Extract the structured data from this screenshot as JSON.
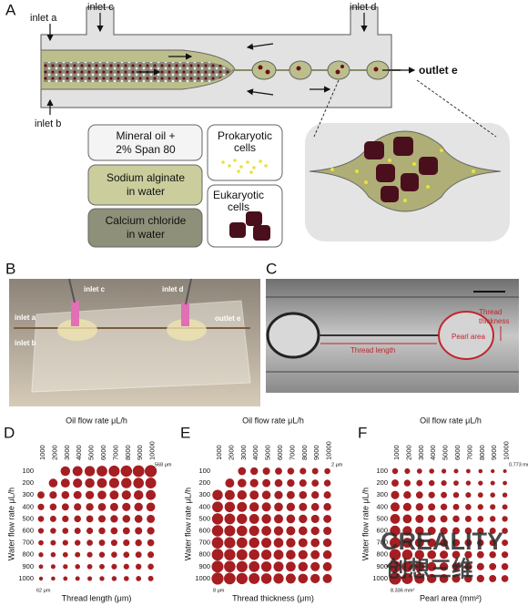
{
  "panel_a": {
    "label": "A",
    "inlet_a": "inlet a",
    "inlet_b": "inlet b",
    "inlet_c": "inlet c",
    "inlet_d": "inlet d",
    "outlet_e": "outlet e",
    "oil_line1": "Mineral oil +",
    "oil_line2": "2% Span 80",
    "prokaryotic_line1": "Prokaryotic",
    "prokaryotic_line2": "cells",
    "alginate_line1": "Sodium alginate",
    "alginate_line2": "in water",
    "calcium_line1": "Calcium chloride",
    "calcium_line2": "in water",
    "eukaryotic_line1": "Eukaryotic",
    "eukaryotic_line2": "cells"
  },
  "panel_b": {
    "label": "B",
    "inlet_c": "inlet c",
    "inlet_d": "inlet d",
    "inlet_a": "inlet a",
    "inlet_b": "inlet b",
    "outlet_e": "outlet e"
  },
  "panel_c": {
    "label": "C",
    "thread_thickness_line1": "Thread",
    "thread_thickness_line2": "thickness",
    "pearl_area": "Pearl area",
    "thread_length": "Thread length"
  },
  "watermark": {
    "brand": "CREALITY",
    "chinese": "创想三维"
  },
  "chart_data": [
    {
      "type": "bubble",
      "label": "D",
      "title": "Oil flow rate μL/h",
      "ylabel": "Water flow rate μL/h",
      "xlabel": "Thread length (μm)",
      "color": "#a51e22",
      "categories": [
        1000,
        2000,
        3000,
        4000,
        5000,
        6000,
        7000,
        8000,
        9000,
        10000
      ],
      "rows": [
        100,
        200,
        300,
        400,
        500,
        600,
        700,
        800,
        900,
        1000
      ],
      "max_label": "568 μm",
      "min_label": "62 μm",
      "values": [
        [
          null,
          null,
          360,
          390,
          420,
          450,
          480,
          510,
          540,
          568
        ],
        [
          null,
          300,
          320,
          340,
          360,
          380,
          400,
          420,
          440,
          460
        ],
        [
          200,
          220,
          240,
          260,
          280,
          300,
          320,
          340,
          360,
          380
        ],
        [
          170,
          185,
          200,
          215,
          230,
          245,
          260,
          275,
          290,
          305
        ],
        [
          145,
          158,
          171,
          184,
          197,
          210,
          223,
          236,
          249,
          262
        ],
        [
          125,
          136,
          147,
          158,
          169,
          180,
          191,
          202,
          213,
          224
        ],
        [
          108,
          117,
          126,
          135,
          144,
          153,
          162,
          171,
          180,
          189
        ],
        [
          92,
          100,
          108,
          116,
          124,
          132,
          140,
          148,
          156,
          164
        ],
        [
          78,
          85,
          92,
          99,
          106,
          113,
          120,
          127,
          134,
          141
        ],
        [
          62,
          68,
          74,
          80,
          86,
          92,
          98,
          104,
          110,
          116
        ]
      ]
    },
    {
      "type": "bubble",
      "label": "E",
      "title": "Oil flow rate μL/h",
      "ylabel": "Water flow rate μL/h",
      "xlabel": "Thread thickness (μm)",
      "color": "#a51e22",
      "categories": [
        1000,
        2000,
        3000,
        4000,
        5000,
        6000,
        7000,
        8000,
        9000,
        10000
      ],
      "rows": [
        100,
        200,
        300,
        400,
        500,
        600,
        700,
        800,
        900,
        1000
      ],
      "max_label": "2 μm",
      "min_label": "8 μm",
      "values": [
        [
          null,
          null,
          3.5,
          3.2,
          3.0,
          2.8,
          2.6,
          2.4,
          2.2,
          2.0
        ],
        [
          null,
          4.5,
          4.2,
          3.9,
          3.6,
          3.4,
          3.2,
          3.0,
          2.8,
          2.6
        ],
        [
          6.0,
          5.5,
          5.0,
          4.6,
          4.2,
          3.9,
          3.6,
          3.4,
          3.2,
          3.0
        ],
        [
          6.5,
          6.0,
          5.5,
          5.0,
          4.6,
          4.3,
          4.0,
          3.7,
          3.5,
          3.3
        ],
        [
          7.0,
          6.4,
          5.9,
          5.4,
          5.0,
          4.6,
          4.3,
          4.0,
          3.8,
          3.6
        ],
        [
          7.2,
          6.7,
          6.2,
          5.7,
          5.3,
          4.9,
          4.6,
          4.3,
          4.0,
          3.8
        ],
        [
          7.4,
          6.9,
          6.4,
          6.0,
          5.6,
          5.2,
          4.9,
          4.6,
          4.3,
          4.0
        ],
        [
          7.6,
          7.1,
          6.6,
          6.2,
          5.8,
          5.4,
          5.1,
          4.8,
          4.5,
          4.2
        ],
        [
          7.8,
          7.3,
          6.8,
          6.4,
          6.0,
          5.6,
          5.3,
          5.0,
          4.7,
          4.4
        ],
        [
          8.0,
          7.5,
          7.0,
          6.6,
          6.2,
          5.8,
          5.5,
          5.2,
          4.9,
          4.6
        ]
      ]
    },
    {
      "type": "bubble",
      "label": "F",
      "title": "Oil flow rate μL/h",
      "ylabel": "Water flow rate μL/h",
      "xlabel": "Pearl area (mm²)",
      "color": "#a51e22",
      "categories": [
        1000,
        2000,
        3000,
        4000,
        5000,
        6000,
        7000,
        8000,
        9000,
        10000
      ],
      "rows": [
        100,
        200,
        300,
        400,
        500,
        600,
        700,
        800,
        900,
        1000
      ],
      "max_label": "0.773 mm²",
      "min_label": "8.336 mm²",
      "values": [
        [
          2.0,
          1.8,
          1.6,
          1.5,
          1.3,
          1.2,
          1.1,
          1.0,
          0.9,
          0.773
        ],
        [
          3.0,
          2.6,
          2.3,
          2.0,
          1.8,
          1.6,
          1.4,
          1.3,
          1.2,
          1.1
        ],
        [
          4.0,
          3.4,
          2.9,
          2.5,
          2.2,
          2.0,
          1.8,
          1.6,
          1.5,
          1.4
        ],
        [
          4.8,
          4.0,
          3.4,
          3.0,
          2.6,
          2.3,
          2.1,
          1.9,
          1.8,
          1.7
        ],
        [
          5.5,
          4.6,
          3.9,
          3.4,
          3.0,
          2.7,
          2.4,
          2.2,
          2.0,
          1.9
        ],
        [
          6.2,
          5.2,
          4.4,
          3.8,
          3.3,
          3.0,
          2.7,
          2.5,
          2.3,
          2.1
        ],
        [
          6.8,
          5.7,
          4.8,
          4.2,
          3.7,
          3.3,
          3.0,
          2.7,
          2.5,
          2.3
        ],
        [
          7.4,
          6.2,
          5.2,
          4.5,
          4.0,
          3.6,
          3.2,
          2.9,
          2.7,
          2.5
        ],
        [
          7.9,
          6.6,
          5.6,
          4.8,
          4.3,
          3.8,
          3.4,
          3.1,
          2.9,
          2.7
        ],
        [
          8.336,
          7.0,
          5.9,
          5.1,
          4.5,
          4.0,
          3.6,
          3.3,
          3.0,
          2.8
        ]
      ]
    }
  ]
}
